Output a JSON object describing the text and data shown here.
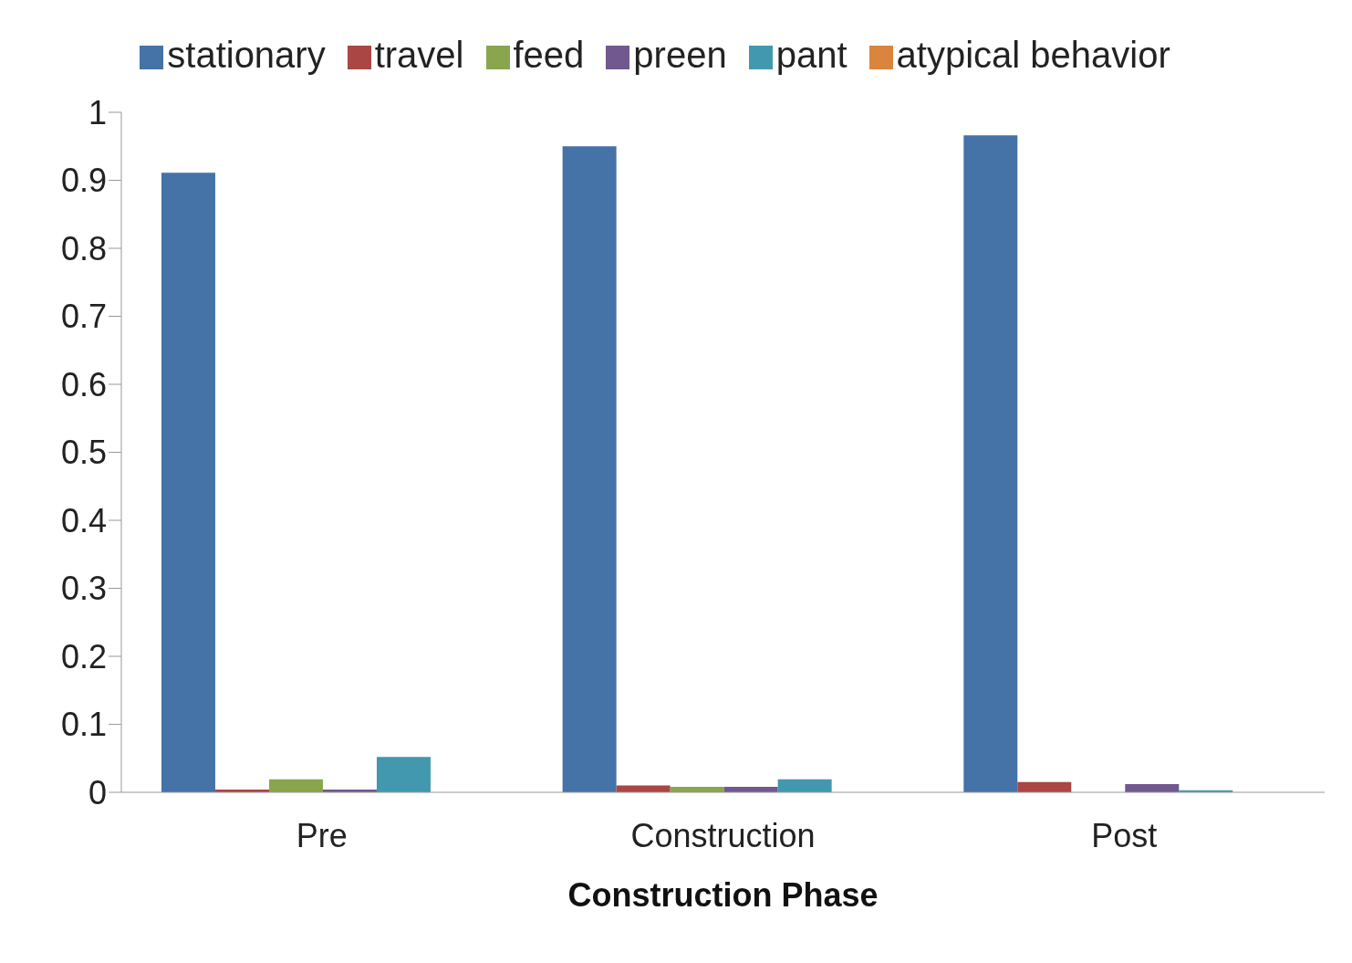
{
  "chart_data": {
    "type": "bar",
    "xlabel": "Construction Phase",
    "categories": [
      "Pre",
      "Construction",
      "Post"
    ],
    "series": [
      {
        "name": "stationary",
        "color": "#4572a7",
        "values": [
          0.911,
          0.95,
          0.966
        ]
      },
      {
        "name": "travel",
        "color": "#aa4643",
        "values": [
          0.004,
          0.01,
          0.015
        ]
      },
      {
        "name": "feed",
        "color": "#89a54e",
        "values": [
          0.019,
          0.008,
          0
        ]
      },
      {
        "name": "preen",
        "color": "#71588f",
        "values": [
          0.004,
          0.008,
          0.012
        ]
      },
      {
        "name": "pant",
        "color": "#4198af",
        "values": [
          0.052,
          0.019,
          0.003
        ]
      },
      {
        "name": "atypical behavior",
        "color": "#db843d",
        "values": [
          0,
          0,
          0
        ]
      }
    ],
    "ylim": [
      0,
      1
    ],
    "yticks": [
      0,
      0.1,
      0.2,
      0.3,
      0.4,
      0.5,
      0.6,
      0.7,
      0.8,
      0.9,
      1
    ],
    "legend": "top",
    "grid": false
  }
}
